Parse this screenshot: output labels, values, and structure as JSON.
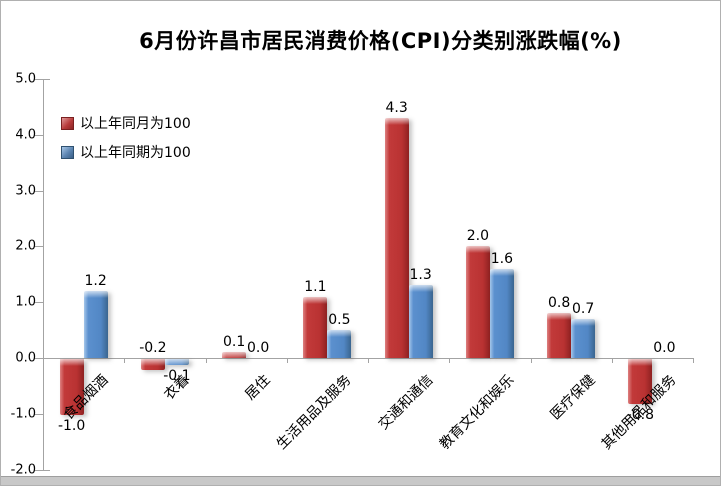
{
  "chart_data": {
    "type": "bar",
    "title": "6月份许昌市居民消费价格(CPI)分类别涨跌幅(%)",
    "categories": [
      "食品烟酒",
      "衣着",
      "居住",
      "生活用品及服务",
      "交通和通信",
      "教育文化和娱乐",
      "医疗保健",
      "其他用品和服务"
    ],
    "series": [
      {
        "name": "以上年同月为100",
        "color": "#c23a3a",
        "values": [
          -1.0,
          -0.2,
          0.1,
          1.1,
          4.3,
          2.0,
          0.8,
          -0.8
        ],
        "label_sides": [
          "below",
          "above",
          "above",
          "above",
          "above",
          "above",
          "above",
          "below"
        ]
      },
      {
        "name": "以上年同期为100",
        "color": "#5b90ce",
        "values": [
          1.2,
          -0.1,
          0.0,
          0.5,
          1.3,
          1.6,
          0.7,
          0.0
        ],
        "label_sides": [
          "above",
          "below",
          "above",
          "above",
          "above",
          "above",
          "above",
          "above"
        ]
      }
    ],
    "ylim": [
      -2.0,
      5.0
    ],
    "ytick_step": 1.0,
    "ytick_labels": [
      "5.0",
      "4.0",
      "3.0",
      "2.0",
      "1.0",
      "0.0",
      "-1.0",
      "-2.0"
    ],
    "value_label_decimals": 1,
    "legend_position": "top-left",
    "grid": false,
    "axis_color": "#a3a3a3"
  }
}
